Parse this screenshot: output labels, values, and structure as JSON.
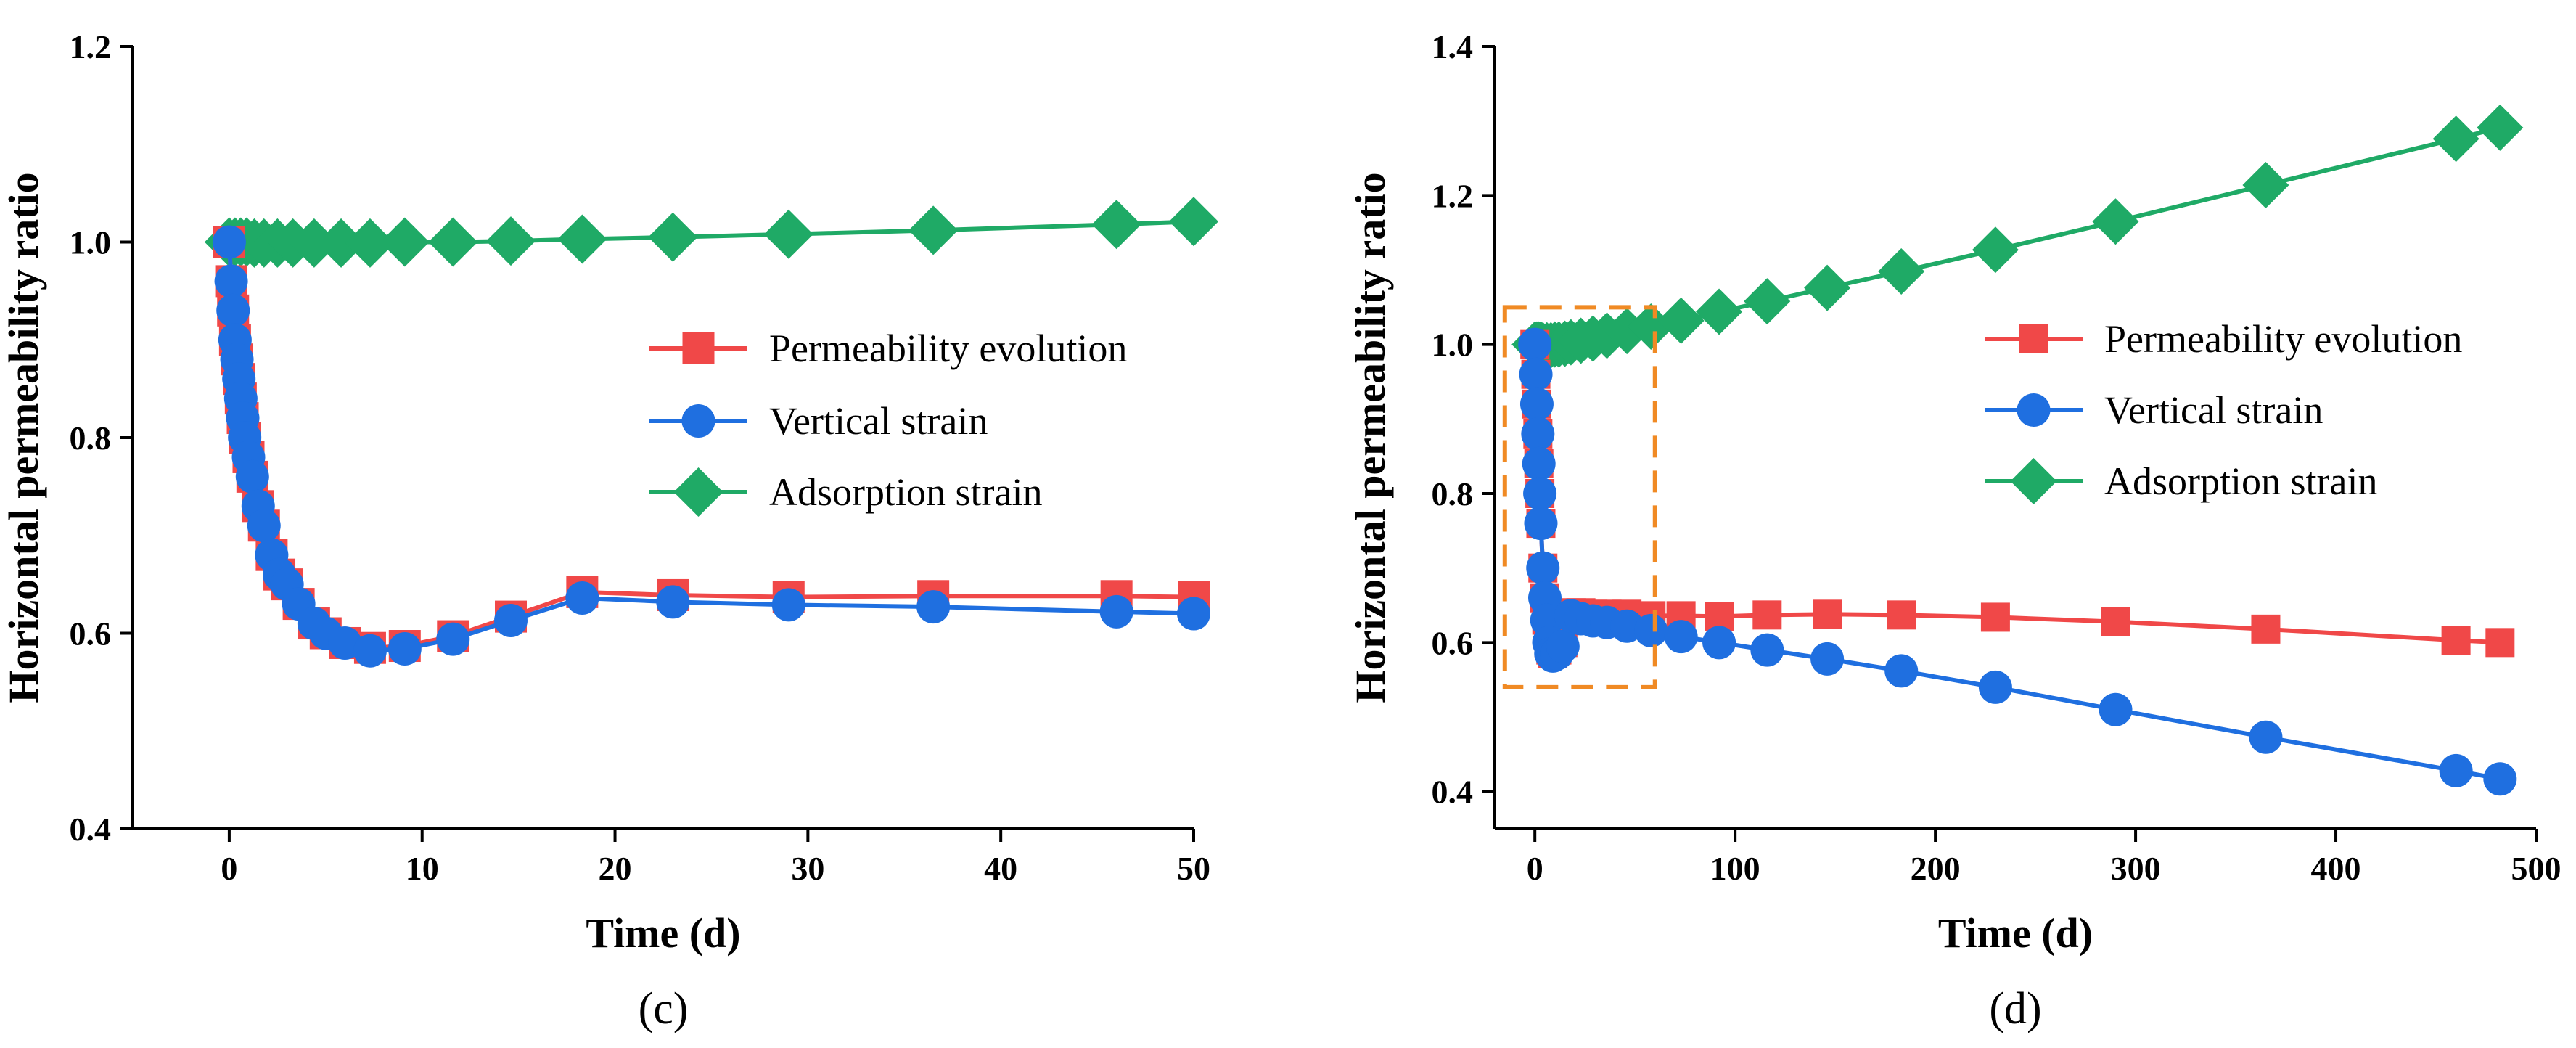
{
  "chart_data": [
    {
      "type": "line",
      "panel_label": "(c)",
      "xlabel": "Time (d)",
      "ylabel": "Horizontal permeability ratio",
      "xlim": [
        -5,
        50
      ],
      "ylim": [
        0.4,
        1.2
      ],
      "xticks": [
        0,
        10,
        20,
        30,
        40,
        50
      ],
      "yticks": [
        0.4,
        0.6,
        0.8,
        1.0,
        1.2
      ],
      "xtick_labels": [
        "0",
        "10",
        "20",
        "30",
        "40",
        "50"
      ],
      "ytick_labels": [
        "0.4",
        "0.6",
        "0.8",
        "1.0",
        "1.2"
      ],
      "legend_position": "center-right",
      "series": [
        {
          "name": "Permeability evolution",
          "color": "#f04848",
          "marker": "square",
          "x": [
            0,
            0.1,
            0.2,
            0.3,
            0.4,
            0.5,
            0.6,
            0.7,
            0.8,
            1.0,
            1.2,
            1.5,
            1.8,
            2.2,
            2.6,
            3.0,
            3.6,
            4.4,
            5.0,
            6.0,
            7.3,
            9.1,
            11.6,
            14.6,
            18.3,
            23.0,
            29.0,
            36.5,
            46.0,
            50.0
          ],
          "y": [
            1.0,
            0.96,
            0.93,
            0.9,
            0.88,
            0.86,
            0.84,
            0.82,
            0.8,
            0.78,
            0.76,
            0.73,
            0.71,
            0.68,
            0.66,
            0.65,
            0.63,
            0.61,
            0.6,
            0.59,
            0.585,
            0.587,
            0.597,
            0.617,
            0.642,
            0.639,
            0.637,
            0.638,
            0.638,
            0.637
          ]
        },
        {
          "name": "Vertical strain",
          "color": "#1f6fe0",
          "marker": "circle",
          "x": [
            0,
            0.1,
            0.2,
            0.3,
            0.4,
            0.5,
            0.6,
            0.7,
            0.8,
            1.0,
            1.2,
            1.5,
            1.8,
            2.2,
            2.6,
            3.0,
            3.6,
            4.4,
            5.0,
            6.0,
            7.3,
            9.1,
            11.6,
            14.6,
            18.3,
            23.0,
            29.0,
            36.5,
            46.0,
            50.0
          ],
          "y": [
            1.0,
            0.96,
            0.93,
            0.9,
            0.88,
            0.86,
            0.84,
            0.82,
            0.8,
            0.78,
            0.76,
            0.73,
            0.71,
            0.68,
            0.66,
            0.65,
            0.63,
            0.61,
            0.6,
            0.59,
            0.582,
            0.584,
            0.594,
            0.613,
            0.636,
            0.632,
            0.629,
            0.627,
            0.622,
            0.62
          ]
        },
        {
          "name": "Adsorption strain",
          "color": "#1faa66",
          "marker": "diamond",
          "x": [
            0,
            0.3,
            0.6,
            0.9,
            1.3,
            1.8,
            2.5,
            3.3,
            4.4,
            5.8,
            7.3,
            9.1,
            11.6,
            14.6,
            18.3,
            23.0,
            29.0,
            36.5,
            46.0,
            50.0
          ],
          "y": [
            1.0,
            1.0,
            1.0,
            1.0,
            0.999,
            0.999,
            0.999,
            0.999,
            0.999,
            0.999,
            0.999,
            1.0,
            1.0,
            1.001,
            1.003,
            1.005,
            1.008,
            1.012,
            1.018,
            1.021
          ]
        }
      ]
    },
    {
      "type": "line",
      "panel_label": "(d)",
      "xlabel": "Time (d)",
      "ylabel": "Horizontal permeability ratio",
      "xlim": [
        -20,
        500
      ],
      "ylim": [
        0.35,
        1.4
      ],
      "xticks": [
        0,
        100,
        200,
        300,
        400,
        500
      ],
      "yticks": [
        0.4,
        0.6,
        0.8,
        1.0,
        1.2,
        1.4
      ],
      "xtick_labels": [
        "0",
        "100",
        "200",
        "300",
        "400",
        "500"
      ],
      "ytick_labels": [
        "0.4",
        "0.6",
        "0.8",
        "1.0",
        "1.2",
        "1.4"
      ],
      "legend_position": "center-right",
      "zoom_box": {
        "x_range": [
          -15,
          60
        ],
        "y_range": [
          0.54,
          1.05
        ],
        "color": "#f08a24"
      },
      "series": [
        {
          "name": "Permeability evolution",
          "color": "#f04848",
          "marker": "square",
          "x": [
            0,
            0.5,
            1,
            1.5,
            2,
            2.5,
            3,
            4,
            5,
            6,
            7,
            8,
            9,
            11,
            14,
            18,
            23,
            29,
            36,
            46,
            58,
            73,
            92,
            116,
            146,
            183,
            230,
            290,
            365,
            460,
            482
          ],
          "y": [
            1.0,
            0.96,
            0.92,
            0.88,
            0.84,
            0.8,
            0.76,
            0.7,
            0.66,
            0.63,
            0.6,
            0.59,
            0.585,
            0.59,
            0.6,
            0.64,
            0.64,
            0.638,
            0.638,
            0.638,
            0.636,
            0.636,
            0.635,
            0.637,
            0.638,
            0.637,
            0.634,
            0.628,
            0.618,
            0.603,
            0.6
          ]
        },
        {
          "name": "Vertical strain",
          "color": "#1f6fe0",
          "marker": "circle",
          "x": [
            0,
            0.5,
            1,
            1.5,
            2,
            2.5,
            3,
            4,
            5,
            6,
            7,
            8,
            9,
            11,
            14,
            18,
            23,
            29,
            36,
            46,
            58,
            73,
            92,
            116,
            146,
            183,
            230,
            290,
            365,
            460,
            482
          ],
          "y": [
            1.0,
            0.96,
            0.92,
            0.88,
            0.84,
            0.8,
            0.76,
            0.7,
            0.66,
            0.63,
            0.6,
            0.585,
            0.582,
            0.585,
            0.595,
            0.636,
            0.632,
            0.629,
            0.627,
            0.622,
            0.616,
            0.608,
            0.6,
            0.59,
            0.578,
            0.562,
            0.54,
            0.51,
            0.473,
            0.428,
            0.417
          ]
        },
        {
          "name": "Adsorption strain",
          "color": "#1faa66",
          "marker": "diamond",
          "x": [
            0,
            1,
            2,
            3,
            4,
            6,
            8,
            10,
            12,
            15,
            18,
            23,
            29,
            36,
            46,
            58,
            73,
            92,
            116,
            146,
            183,
            230,
            290,
            365,
            460,
            482
          ],
          "y": [
            1.0,
            1.0,
            1.0,
            1.0,
            0.999,
            0.999,
            0.999,
            1.0,
            1.0,
            1.001,
            1.003,
            1.005,
            1.008,
            1.012,
            1.018,
            1.024,
            1.032,
            1.044,
            1.058,
            1.076,
            1.098,
            1.127,
            1.165,
            1.214,
            1.276,
            1.291
          ]
        }
      ]
    }
  ]
}
